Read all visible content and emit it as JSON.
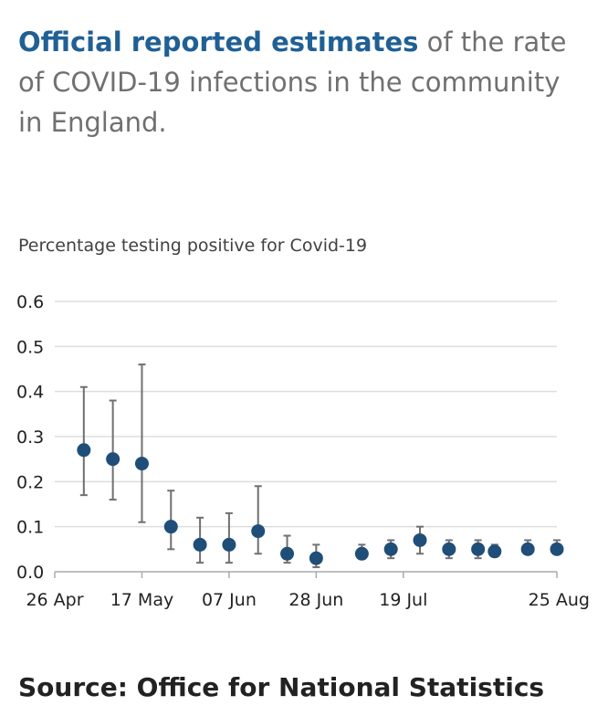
{
  "header": {
    "title_highlight": "Official reported estimates",
    "title_rest": " of the rate of COVID-19 infections in the community in England."
  },
  "footer": {
    "source": "Source: Office for National Statistics"
  },
  "colors": {
    "point": "#1f4e79",
    "error_bar": "#707070",
    "grid": "#dddddd",
    "axis": "#aaaaaa",
    "title_accent": "#206095"
  },
  "chart_data": {
    "type": "scatter",
    "ylabel": "Percentage testing positive for Covid-19",
    "xlabel": "",
    "ylim": [
      0,
      0.6
    ],
    "yticks": [
      0.0,
      0.1,
      0.2,
      0.3,
      0.4,
      0.5,
      0.6
    ],
    "ytick_labels": [
      "0.0",
      "0.1",
      "0.2",
      "0.3",
      "0.4",
      "0.5",
      "0.6"
    ],
    "xlim": [
      "2020-04-26",
      "2020-08-25"
    ],
    "xticks": [
      {
        "date": "2020-04-26",
        "label": "26 Apr"
      },
      {
        "date": "2020-05-17",
        "label": "17 May"
      },
      {
        "date": "2020-06-07",
        "label": "07 Jun"
      },
      {
        "date": "2020-06-28",
        "label": "28 Jun"
      },
      {
        "date": "2020-07-19",
        "label": "19 Jul"
      },
      {
        "date": "2020-08-25",
        "label": "25 Aug"
      }
    ],
    "grid": true,
    "points": [
      {
        "date": "2020-05-03",
        "value": 0.27,
        "lower": 0.17,
        "upper": 0.41
      },
      {
        "date": "2020-05-10",
        "value": 0.25,
        "lower": 0.16,
        "upper": 0.38
      },
      {
        "date": "2020-05-17",
        "value": 0.24,
        "lower": 0.11,
        "upper": 0.46
      },
      {
        "date": "2020-05-24",
        "value": 0.1,
        "lower": 0.05,
        "upper": 0.18
      },
      {
        "date": "2020-05-31",
        "value": 0.06,
        "lower": 0.02,
        "upper": 0.12
      },
      {
        "date": "2020-06-07",
        "value": 0.06,
        "lower": 0.02,
        "upper": 0.13
      },
      {
        "date": "2020-06-14",
        "value": 0.09,
        "lower": 0.04,
        "upper": 0.19
      },
      {
        "date": "2020-06-21",
        "value": 0.04,
        "lower": 0.02,
        "upper": 0.08
      },
      {
        "date": "2020-06-28",
        "value": 0.03,
        "lower": 0.01,
        "upper": 0.06
      },
      {
        "date": "2020-07-09",
        "value": 0.04,
        "lower": 0.03,
        "upper": 0.06
      },
      {
        "date": "2020-07-16",
        "value": 0.05,
        "lower": 0.03,
        "upper": 0.07
      },
      {
        "date": "2020-07-23",
        "value": 0.07,
        "lower": 0.04,
        "upper": 0.1
      },
      {
        "date": "2020-07-30",
        "value": 0.05,
        "lower": 0.03,
        "upper": 0.07
      },
      {
        "date": "2020-08-06",
        "value": 0.05,
        "lower": 0.03,
        "upper": 0.07
      },
      {
        "date": "2020-08-10",
        "value": 0.045,
        "lower": 0.04,
        "upper": 0.06
      },
      {
        "date": "2020-08-18",
        "value": 0.05,
        "lower": 0.04,
        "upper": 0.07
      },
      {
        "date": "2020-08-25",
        "value": 0.05,
        "lower": 0.04,
        "upper": 0.07
      }
    ]
  }
}
